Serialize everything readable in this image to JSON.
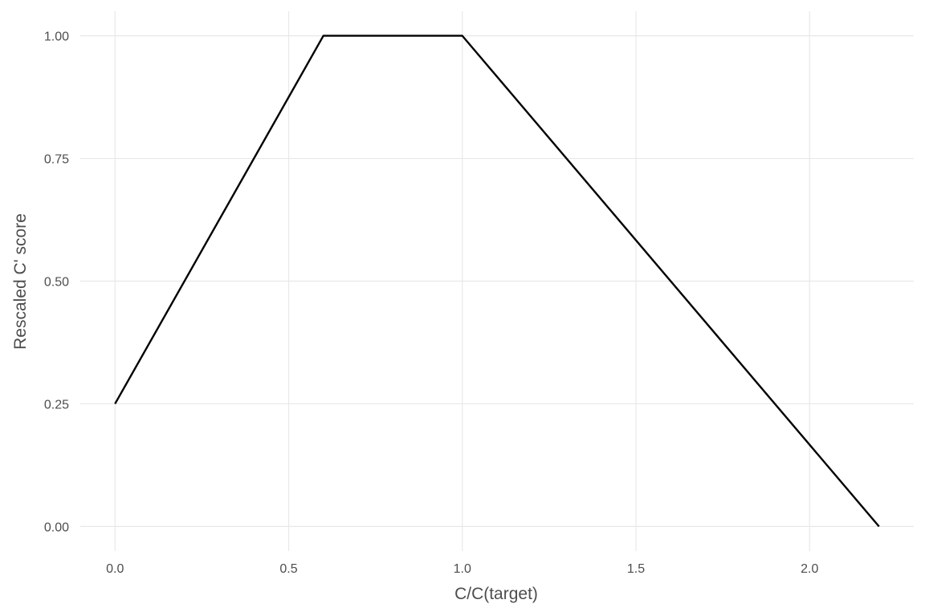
{
  "chart_data": {
    "type": "line",
    "title": "",
    "xlabel": "C/C(target)",
    "ylabel": "Rescaled C' score",
    "xlim": [
      -0.1,
      2.3
    ],
    "ylim": [
      -0.05,
      1.05
    ],
    "x_ticks": [
      0.0,
      0.5,
      1.0,
      1.5,
      2.0
    ],
    "x_tick_labels": [
      "0.0",
      "0.5",
      "1.0",
      "1.5",
      "2.0"
    ],
    "y_ticks": [
      0.0,
      0.25,
      0.5,
      0.75,
      1.0
    ],
    "y_tick_labels": [
      "0.00",
      "0.25",
      "0.50",
      "0.75",
      "1.00"
    ],
    "grid": true,
    "legend": "none",
    "series": [
      {
        "x": [
          0.0,
          0.6,
          1.0,
          2.2
        ],
        "y": [
          0.25,
          1.0,
          1.0,
          0.0
        ],
        "color": "#000000"
      }
    ]
  }
}
